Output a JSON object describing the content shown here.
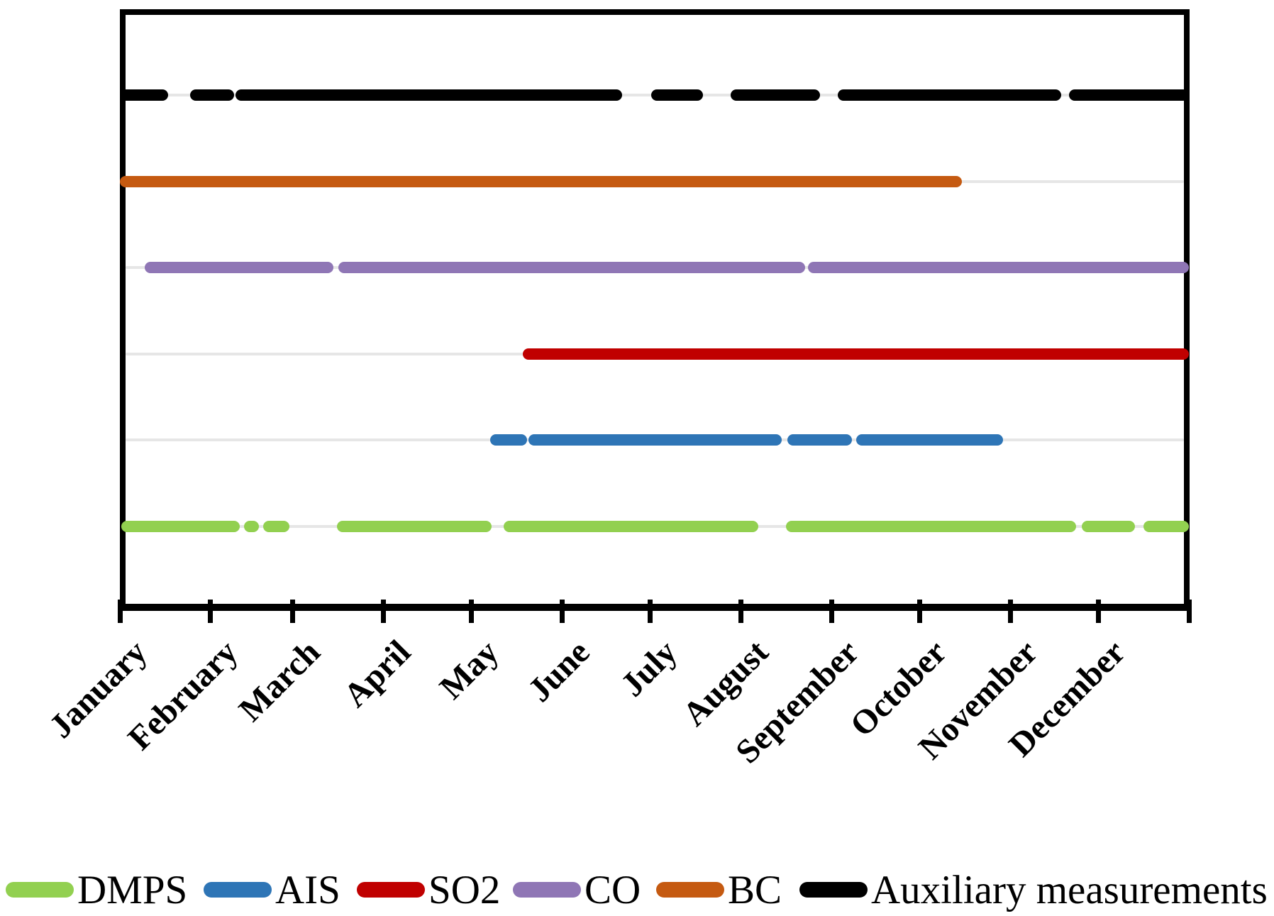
{
  "chart_data": {
    "type": "bar",
    "subtype": "gantt-availability-timeline",
    "title": "",
    "xlabel": "",
    "ylabel": "",
    "x_axis": {
      "unit": "day_of_year",
      "range": [
        0,
        365
      ],
      "tick_label_months": [
        "January",
        "February",
        "March",
        "April",
        "May",
        "June",
        "July",
        "August",
        "September",
        "October",
        "November",
        "December"
      ],
      "month_start_days": [
        0,
        31,
        59,
        90,
        120,
        151,
        181,
        212,
        243,
        273,
        304,
        334
      ],
      "tick_boundary_days": [
        0,
        31,
        59,
        90,
        120,
        151,
        181,
        212,
        243,
        273,
        304,
        334,
        365
      ],
      "grid": "horizontal-light-gray"
    },
    "series": [
      {
        "name": "Auxiliary measurements",
        "color": "#000000",
        "segments_days": [
          [
            0,
            16.5
          ],
          [
            24,
            39
          ],
          [
            39.5,
            171.5
          ],
          [
            181.5,
            199
          ],
          [
            208.5,
            239
          ],
          [
            245,
            321.5
          ],
          [
            324,
            365
          ]
        ]
      },
      {
        "name": "BC",
        "color": "#c55a11",
        "segments_days": [
          [
            0,
            287.5
          ]
        ]
      },
      {
        "name": "CO",
        "color": "#8f76b5",
        "segments_days": [
          [
            8.5,
            73
          ],
          [
            74.5,
            234
          ],
          [
            235,
            365
          ]
        ]
      },
      {
        "name": "SO2",
        "color": "#c00000",
        "segments_days": [
          [
            137.5,
            365
          ]
        ]
      },
      {
        "name": "AIS",
        "color": "#2e75b6",
        "segments_days": [
          [
            126.5,
            139
          ],
          [
            139.5,
            226
          ],
          [
            228,
            250
          ],
          [
            251.5,
            301.5
          ]
        ]
      },
      {
        "name": "DMPS",
        "color": "#92d050",
        "segments_days": [
          [
            0.5,
            41
          ],
          [
            42.5,
            47.5
          ],
          [
            49,
            58
          ],
          [
            74,
            127
          ],
          [
            131,
            218
          ],
          [
            227.5,
            326.5
          ],
          [
            328.5,
            346.5
          ],
          [
            349.5,
            365
          ]
        ]
      }
    ],
    "legend": {
      "position": "bottom",
      "entries": [
        {
          "label": "DMPS",
          "color": "#92d050"
        },
        {
          "label": "AIS",
          "color": "#2e75b6"
        },
        {
          "label": "SO2",
          "color": "#c00000"
        },
        {
          "label": "CO",
          "color": "#8f76b5"
        },
        {
          "label": "BC",
          "color": "#c55a11"
        },
        {
          "label": "Auxiliary measurements",
          "color": "#000000"
        }
      ]
    }
  }
}
